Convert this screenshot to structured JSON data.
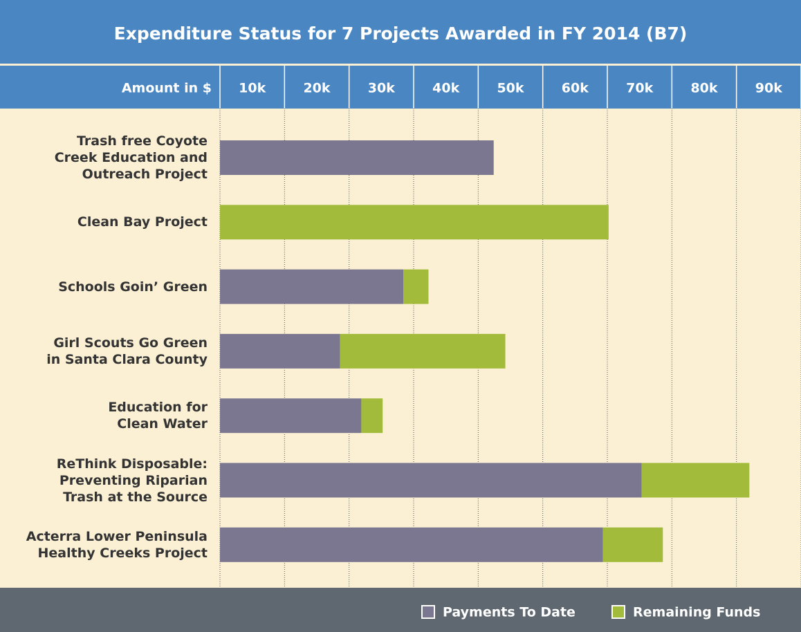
{
  "chart_data": {
    "type": "stacked-barh",
    "title": "Expenditure Status for 7 Projects Awarded in FY 2014 (B7)",
    "x_label": "Amount in $",
    "categories": [
      "Trash free Coyote\nCreek Education and\nOutreach Project",
      "Clean Bay Project",
      "Schools Goin’ Green",
      "Girl Scouts Go Green\nin Santa Clara County",
      "Education for\nClean Water",
      "ReThink Disposable:\nPreventing Riparian\nTrash at the Source",
      "Acterra Lower Peninsula\nHealthy Creeks Project"
    ],
    "series": [
      {
        "name": "Payments To Date",
        "color": "#7b7790",
        "values": [
          42400,
          0,
          28400,
          18600,
          21900,
          65300,
          59300
        ]
      },
      {
        "name": "Remaining Funds",
        "color": "#a3bb3a",
        "values": [
          0,
          60200,
          3900,
          25600,
          3300,
          16700,
          9300
        ]
      }
    ],
    "xlim": [
      0,
      90000
    ],
    "xticks": [
      {
        "value": 10000,
        "label": "10k"
      },
      {
        "value": 20000,
        "label": "20k"
      },
      {
        "value": 30000,
        "label": "30k"
      },
      {
        "value": 40000,
        "label": "40k"
      },
      {
        "value": 50000,
        "label": "50k"
      },
      {
        "value": 60000,
        "label": "60k"
      },
      {
        "value": 70000,
        "label": "70k"
      },
      {
        "value": 80000,
        "label": "80k"
      },
      {
        "value": 90000,
        "label": "90k"
      }
    ],
    "grid": true
  }
}
